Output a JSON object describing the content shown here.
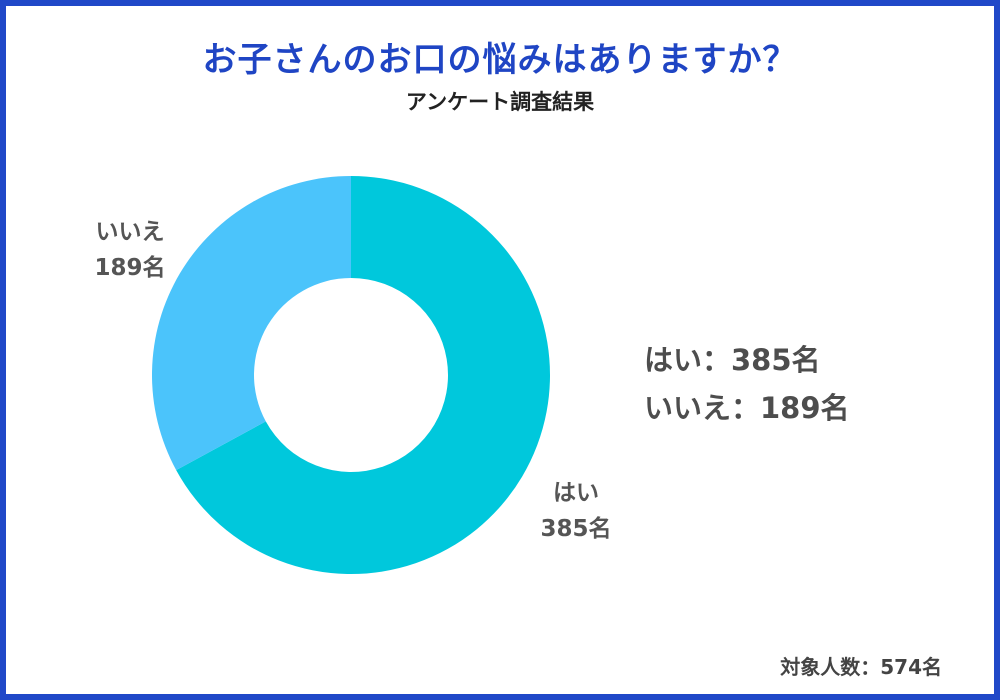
{
  "header": {
    "title": "お子さんのお口の悩みはありますか？",
    "subtitle": "アンケート調査結果"
  },
  "summary": {
    "lines": [
      "はい：385名",
      "いいえ：189名"
    ]
  },
  "footer": {
    "note": "対象人数：574名"
  },
  "colors": {
    "frame_border": "#2048c8",
    "title": "#1f45c4",
    "series_yes": "#00c8dc",
    "series_no": "#4bc4fb",
    "label_text": "#555555"
  },
  "chart_data": {
    "type": "pie",
    "variant": "donut",
    "title": "お子さんのお口の悩みはありますか？",
    "subtitle": "アンケート調査結果",
    "categories": [
      "はい",
      "いいえ"
    ],
    "values": [
      385,
      189
    ],
    "unit": "名",
    "total": 574,
    "start": "top",
    "direction": "clockwise",
    "slices": [
      {
        "name": "はい",
        "value": 385,
        "label_lines": [
          "はい",
          "385名"
        ],
        "label_position": "outside-bottom-right",
        "color": "#00c8dc"
      },
      {
        "name": "いいえ",
        "value": 189,
        "label_lines": [
          "いいえ",
          "189名"
        ],
        "label_position": "outside-top-left",
        "color": "#4bc4fb"
      }
    ],
    "legend": "none"
  }
}
